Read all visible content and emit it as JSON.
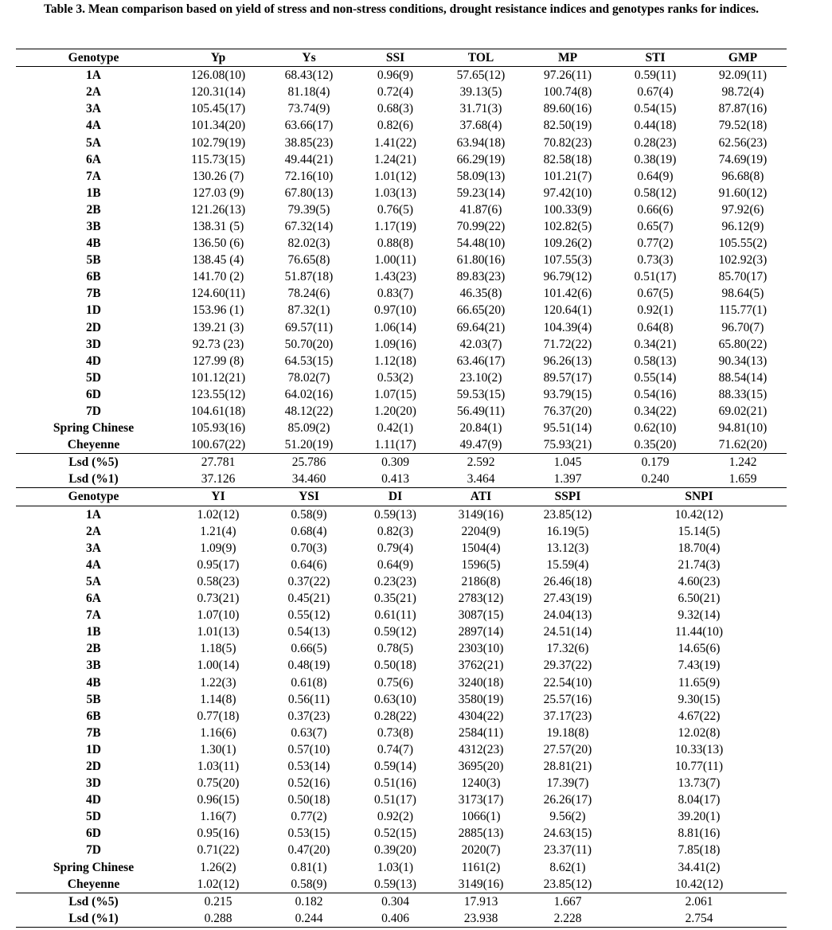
{
  "title": "Table 3. Mean comparison based on yield of stress and non-stress conditions, drought resistance indices and genotypes ranks for indices.",
  "table1": {
    "headers": [
      "Genotype",
      "Yp",
      "Ys",
      "SSI",
      "TOL",
      "MP",
      "STI",
      "GMP"
    ],
    "rows": [
      [
        "1A",
        "126.08(10)",
        "68.43(12)",
        "0.96(9)",
        "57.65(12)",
        "97.26(11)",
        "0.59(11)",
        "92.09(11)"
      ],
      [
        "2A",
        "120.31(14)",
        "81.18(4)",
        "0.72(4)",
        "39.13(5)",
        "100.74(8)",
        "0.67(4)",
        "98.72(4)"
      ],
      [
        "3A",
        "105.45(17)",
        "73.74(9)",
        "0.68(3)",
        "31.71(3)",
        "89.60(16)",
        "0.54(15)",
        "87.87(16)"
      ],
      [
        "4A",
        "101.34(20)",
        "63.66(17)",
        "0.82(6)",
        "37.68(4)",
        "82.50(19)",
        "0.44(18)",
        "79.52(18)"
      ],
      [
        "5A",
        "102.79(19)",
        "38.85(23)",
        "1.41(22)",
        "63.94(18)",
        "70.82(23)",
        "0.28(23)",
        "62.56(23)"
      ],
      [
        "6A",
        "115.73(15)",
        "49.44(21)",
        "1.24(21)",
        "66.29(19)",
        "82.58(18)",
        "0.38(19)",
        "74.69(19)"
      ],
      [
        "7A",
        "130.26 (7)",
        "72.16(10)",
        "1.01(12)",
        "58.09(13)",
        "101.21(7)",
        "0.64(9)",
        "96.68(8)"
      ],
      [
        "1B",
        "127.03 (9)",
        "67.80(13)",
        "1.03(13)",
        "59.23(14)",
        "97.42(10)",
        "0.58(12)",
        "91.60(12)"
      ],
      [
        "2B",
        "121.26(13)",
        "79.39(5)",
        "0.76(5)",
        "41.87(6)",
        "100.33(9)",
        "0.66(6)",
        "97.92(6)"
      ],
      [
        "3B",
        "138.31 (5)",
        "67.32(14)",
        "1.17(19)",
        "70.99(22)",
        "102.82(5)",
        "0.65(7)",
        "96.12(9)"
      ],
      [
        "4B",
        "136.50 (6)",
        "82.02(3)",
        "0.88(8)",
        "54.48(10)",
        "109.26(2)",
        "0.77(2)",
        "105.55(2)"
      ],
      [
        "5B",
        "138.45 (4)",
        "76.65(8)",
        "1.00(11)",
        "61.80(16)",
        "107.55(3)",
        "0.73(3)",
        "102.92(3)"
      ],
      [
        "6B",
        "141.70 (2)",
        "51.87(18)",
        "1.43(23)",
        "89.83(23)",
        "96.79(12)",
        "0.51(17)",
        "85.70(17)"
      ],
      [
        "7B",
        "124.60(11)",
        "78.24(6)",
        "0.83(7)",
        "46.35(8)",
        "101.42(6)",
        "0.67(5)",
        "98.64(5)"
      ],
      [
        "1D",
        "153.96 (1)",
        "87.32(1)",
        "0.97(10)",
        "66.65(20)",
        "120.64(1)",
        "0.92(1)",
        "115.77(1)"
      ],
      [
        "2D",
        "139.21 (3)",
        "69.57(11)",
        "1.06(14)",
        "69.64(21)",
        "104.39(4)",
        "0.64(8)",
        "96.70(7)"
      ],
      [
        "3D",
        "92.73 (23)",
        "50.70(20)",
        "1.09(16)",
        "42.03(7)",
        "71.72(22)",
        "0.34(21)",
        "65.80(22)"
      ],
      [
        "4D",
        "127.99 (8)",
        "64.53(15)",
        "1.12(18)",
        "63.46(17)",
        "96.26(13)",
        "0.58(13)",
        "90.34(13)"
      ],
      [
        "5D",
        "101.12(21)",
        "78.02(7)",
        "0.53(2)",
        "23.10(2)",
        "89.57(17)",
        "0.55(14)",
        "88.54(14)"
      ],
      [
        "6D",
        "123.55(12)",
        "64.02(16)",
        "1.07(15)",
        "59.53(15)",
        "93.79(15)",
        "0.54(16)",
        "88.33(15)"
      ],
      [
        "7D",
        "104.61(18)",
        "48.12(22)",
        "1.20(20)",
        "56.49(11)",
        "76.37(20)",
        "0.34(22)",
        "69.02(21)"
      ],
      [
        "Spring Chinese",
        "105.93(16)",
        "85.09(2)",
        "0.42(1)",
        "20.84(1)",
        "95.51(14)",
        "0.62(10)",
        "94.81(10)"
      ],
      [
        "Cheyenne",
        "100.67(22)",
        "51.20(19)",
        "1.11(17)",
        "49.47(9)",
        "75.93(21)",
        "0.35(20)",
        "71.62(20)"
      ]
    ],
    "lsd": [
      [
        "Lsd (%5)",
        "27.781",
        "25.786",
        "0.309",
        "2.592",
        "1.045",
        "0.179",
        "1.242"
      ],
      [
        "Lsd (%1)",
        "37.126",
        "34.460",
        "0.413",
        "3.464",
        "1.397",
        "0.240",
        "1.659"
      ]
    ]
  },
  "table2": {
    "headers": [
      "Genotype",
      "YI",
      "YSI",
      "DI",
      "ATI",
      "SSPI",
      "SNPI"
    ],
    "rows": [
      [
        "1A",
        "1.02(12)",
        "0.58(9)",
        "0.59(13)",
        "3149(16)",
        "23.85(12)",
        "10.42(12)"
      ],
      [
        "2A",
        "1.21(4)",
        "0.68(4)",
        "0.82(3)",
        "2204(9)",
        "16.19(5)",
        "15.14(5)"
      ],
      [
        "3A",
        "1.09(9)",
        "0.70(3)",
        "0.79(4)",
        "1504(4)",
        "13.12(3)",
        "18.70(4)"
      ],
      [
        "4A",
        "0.95(17)",
        "0.64(6)",
        "0.64(9)",
        "1596(5)",
        "15.59(4)",
        "21.74(3)"
      ],
      [
        "5A",
        "0.58(23)",
        "0.37(22)",
        "0.23(23)",
        "2186(8)",
        "26.46(18)",
        "4.60(23)"
      ],
      [
        "6A",
        "0.73(21)",
        "0.45(21)",
        "0.35(21)",
        "2783(12)",
        "27.43(19)",
        "6.50(21)"
      ],
      [
        "7A",
        "1.07(10)",
        "0.55(12)",
        "0.61(11)",
        "3087(15)",
        "24.04(13)",
        "9.32(14)"
      ],
      [
        "1B",
        "1.01(13)",
        "0.54(13)",
        "0.59(12)",
        "2897(14)",
        "24.51(14)",
        "11.44(10)"
      ],
      [
        "2B",
        "1.18(5)",
        "0.66(5)",
        "0.78(5)",
        "2303(10)",
        "17.32(6)",
        "14.65(6)"
      ],
      [
        "3B",
        "1.00(14)",
        "0.48(19)",
        "0.50(18)",
        "3762(21)",
        "29.37(22)",
        "7.43(19)"
      ],
      [
        "4B",
        "1.22(3)",
        "0.61(8)",
        "0.75(6)",
        "3240(18)",
        "22.54(10)",
        "11.65(9)"
      ],
      [
        "5B",
        "1.14(8)",
        "0.56(11)",
        "0.63(10)",
        "3580(19)",
        "25.57(16)",
        "9.30(15)"
      ],
      [
        "6B",
        "0.77(18)",
        "0.37(23)",
        "0.28(22)",
        "4304(22)",
        "37.17(23)",
        "4.67(22)"
      ],
      [
        "7B",
        "1.16(6)",
        "0.63(7)",
        "0.73(8)",
        "2584(11)",
        "19.18(8)",
        "12.02(8)"
      ],
      [
        "1D",
        "1.30(1)",
        "0.57(10)",
        "0.74(7)",
        "4312(23)",
        "27.57(20)",
        "10.33(13)"
      ],
      [
        "2D",
        "1.03(11)",
        "0.53(14)",
        "0.59(14)",
        "3695(20)",
        "28.81(21)",
        "10.77(11)"
      ],
      [
        "3D",
        "0.75(20)",
        "0.52(16)",
        "0.51(16)",
        "1240(3)",
        "17.39(7)",
        "13.73(7)"
      ],
      [
        "4D",
        "0.96(15)",
        "0.50(18)",
        "0.51(17)",
        "3173(17)",
        "26.26(17)",
        "8.04(17)"
      ],
      [
        "5D",
        "1.16(7)",
        "0.77(2)",
        "0.92(2)",
        "1066(1)",
        "9.56(2)",
        "39.20(1)"
      ],
      [
        "6D",
        "0.95(16)",
        "0.53(15)",
        "0.52(15)",
        "2885(13)",
        "24.63(15)",
        "8.81(16)"
      ],
      [
        "7D",
        "0.71(22)",
        "0.47(20)",
        "0.39(20)",
        "2020(7)",
        "23.37(11)",
        "7.85(18)"
      ],
      [
        "Spring Chinese",
        "1.26(2)",
        "0.81(1)",
        "1.03(1)",
        "1161(2)",
        "8.62(1)",
        "34.41(2)"
      ],
      [
        "Cheyenne",
        "1.02(12)",
        "0.58(9)",
        "0.59(13)",
        "3149(16)",
        "23.85(12)",
        "10.42(12)"
      ]
    ],
    "lsd": [
      [
        "Lsd (%5)",
        "0.215",
        "0.182",
        "0.304",
        "17.913",
        "1.667",
        "2.061"
      ],
      [
        "Lsd (%1)",
        "0.288",
        "0.244",
        "0.406",
        "23.938",
        "2.228",
        "2.754"
      ]
    ]
  }
}
